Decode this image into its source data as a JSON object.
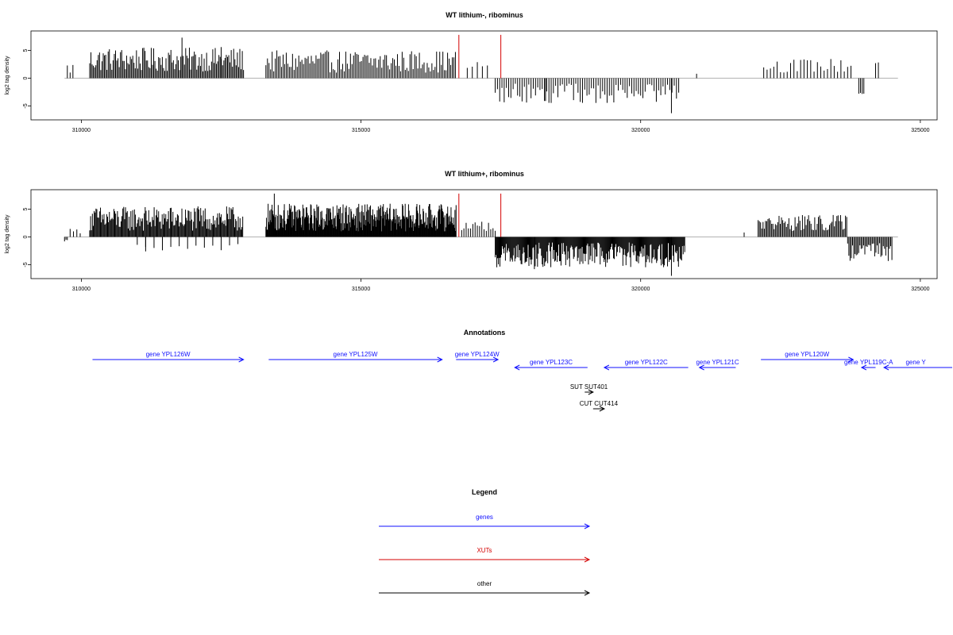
{
  "chart_data": [
    {
      "type": "bar",
      "title": "WT lithium-, ribominus",
      "ylabel": "log2 tag density",
      "xlim": [
        309100,
        325300
      ],
      "ylim": [
        -7.5,
        8.5
      ],
      "xticks": [
        310000,
        315000,
        320000,
        325000
      ],
      "xtick_labels": [
        "310000",
        "315000",
        "320000",
        "325000"
      ],
      "yticks": [
        -5,
        0,
        5
      ],
      "ytick_labels": [
        "-5",
        "0",
        "5"
      ],
      "baseline": [
        309700,
        324600
      ],
      "series": [
        {
          "color": "#000000",
          "regions": [
            {
              "x0": 309750,
              "x1": 309850,
              "step": 50,
              "min": 0.5,
              "max": 3.0,
              "sign": 1
            },
            {
              "x0": 310150,
              "x1": 312900,
              "step": 22,
              "min": 1.2,
              "max": 5.5,
              "sign": 1
            },
            {
              "x0": 313300,
              "x1": 316700,
              "step": 28,
              "min": 1.0,
              "max": 5.0,
              "sign": 1
            },
            {
              "x0": 316900,
              "x1": 317300,
              "step": 90,
              "min": 1.5,
              "max": 3.0,
              "sign": 1
            },
            {
              "x0": 317400,
              "x1": 320700,
              "step": 40,
              "min": 1.0,
              "max": 4.5,
              "sign": -1
            },
            {
              "x0": 322200,
              "x1": 323800,
              "step": 60,
              "min": 1.0,
              "max": 3.5,
              "sign": 1
            },
            {
              "x0": 323900,
              "x1": 324000,
              "step": 30,
              "min": 2.0,
              "max": 3.8,
              "sign": -1
            },
            {
              "x0": 324200,
              "x1": 324250,
              "step": 50,
              "min": 2.5,
              "max": 3.0,
              "sign": 1
            }
          ],
          "spikes": [
            [
              311800,
              7.3
            ],
            [
              320550,
              -6.3
            ],
            [
              312500,
              5.6
            ],
            [
              321000,
              0.8
            ],
            [
              318300,
              -4.1
            ]
          ]
        },
        {
          "color": "#d40000",
          "spikes": [
            [
              316750,
              7.8
            ],
            [
              317500,
              7.8
            ]
          ]
        }
      ]
    },
    {
      "type": "bar",
      "title": "WT lithium+, ribominus",
      "ylabel": "log2 tag density",
      "xlim": [
        309100,
        325300
      ],
      "ylim": [
        -7.5,
        8.5
      ],
      "xticks": [
        310000,
        315000,
        320000,
        325000
      ],
      "xtick_labels": [
        "310000",
        "315000",
        "320000",
        "325000"
      ],
      "yticks": [
        -5,
        0,
        5
      ],
      "ytick_labels": [
        "-5",
        "0",
        "5"
      ],
      "baseline": [
        309700,
        324600
      ],
      "series": [
        {
          "color": "#000000",
          "regions": [
            {
              "x0": 309700,
              "x1": 309750,
              "step": 25,
              "min": 0.5,
              "max": 0.9,
              "sign": -1
            },
            {
              "x0": 309800,
              "x1": 310000,
              "step": 60,
              "min": 0.6,
              "max": 1.5,
              "sign": 1
            },
            {
              "x0": 310150,
              "x1": 312900,
              "step": 16,
              "min": 1.0,
              "max": 5.5,
              "sign": 1
            },
            {
              "x0": 311000,
              "x1": 312800,
              "step": 150,
              "min": 0.5,
              "max": 2.5,
              "sign": -1
            },
            {
              "x0": 313300,
              "x1": 316700,
              "step": 10,
              "min": 1.0,
              "max": 6.0,
              "sign": 1
            },
            {
              "x0": 316800,
              "x1": 317400,
              "step": 40,
              "min": 1.0,
              "max": 3.0,
              "sign": 1
            },
            {
              "x0": 317400,
              "x1": 320800,
              "step": 14,
              "min": 1.0,
              "max": 5.5,
              "sign": -1
            },
            {
              "x0": 322100,
              "x1": 323700,
              "step": 22,
              "min": 1.0,
              "max": 4.0,
              "sign": 1
            },
            {
              "x0": 323700,
              "x1": 324500,
              "step": 22,
              "min": 1.0,
              "max": 4.5,
              "sign": -1
            }
          ],
          "spikes": [
            [
              313450,
              7.8
            ],
            [
              320550,
              -7.0
            ],
            [
              311150,
              -2.6
            ],
            [
              318100,
              -5.8
            ],
            [
              321850,
              0.8
            ]
          ]
        },
        {
          "color": "#d40000",
          "spikes": [
            [
              316750,
              7.8
            ],
            [
              317500,
              7.8
            ]
          ]
        }
      ]
    }
  ],
  "annotations": {
    "title": "Annotations",
    "genes": [
      {
        "label": "gene YPL126W",
        "x0": 310200,
        "x1": 312900,
        "dir": "right",
        "row": 1,
        "color": "#1010ff"
      },
      {
        "label": "gene YPL125W",
        "x0": 313350,
        "x1": 316450,
        "dir": "right",
        "row": 1,
        "color": "#1010ff"
      },
      {
        "label": "gene YPL124W",
        "x0": 316700,
        "x1": 317450,
        "dir": "right",
        "row": 1,
        "color": "#1010ff"
      },
      {
        "label": "gene YPL123C",
        "x0": 317750,
        "x1": 319050,
        "dir": "left",
        "row": 2,
        "color": "#1010ff"
      },
      {
        "label": "gene YPL122C",
        "x0": 319350,
        "x1": 320850,
        "dir": "left",
        "row": 2,
        "color": "#1010ff"
      },
      {
        "label": "gene YPL121C",
        "x0": 321050,
        "x1": 321700,
        "dir": "left",
        "row": 2,
        "color": "#1010ff"
      },
      {
        "label": "gene YPL120W",
        "x0": 322150,
        "x1": 323800,
        "dir": "right",
        "row": 1,
        "color": "#1010ff"
      },
      {
        "label": "gene YPL119C-A",
        "x0": 323950,
        "x1": 324200,
        "dir": "left",
        "row": 2,
        "color": "#1010ff"
      },
      {
        "label": "gene Y",
        "x0": 324350,
        "x1": 325900,
        "dir": "left",
        "row": 2,
        "color": "#1010ff"
      },
      {
        "label": "SUT SUT401",
        "x0": 319000,
        "x1": 319150,
        "dir": "right",
        "row": 3,
        "color": "#000000"
      },
      {
        "label": "CUT CUT414",
        "x0": 319150,
        "x1": 319350,
        "dir": "right",
        "row": 4,
        "color": "#000000"
      }
    ]
  },
  "legend": {
    "title": "Legend",
    "items": [
      {
        "label": "genes",
        "color": "#1010ff"
      },
      {
        "label": "XUTs",
        "color": "#d40000"
      },
      {
        "label": "other",
        "color": "#000000"
      }
    ]
  }
}
